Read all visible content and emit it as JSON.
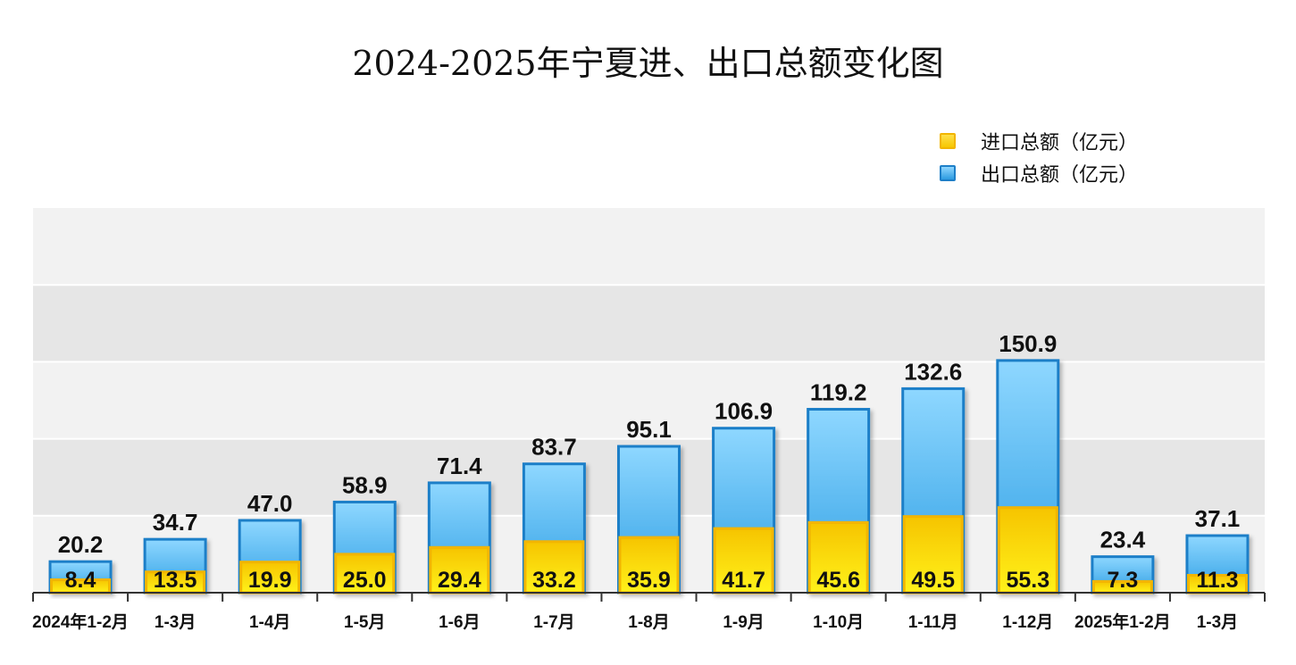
{
  "title": "2024-2025年宁夏进、出口总额变化图",
  "legend": {
    "import_label": "进口总额（亿元）",
    "export_label": "出口总额（亿元）"
  },
  "colors": {
    "import_fill": "#f7d21a",
    "import_border": "#f2b500",
    "export_fill": "#4db6f2",
    "export_border": "#1e7fc8"
  },
  "chart_data": {
    "type": "bar",
    "title": "2024-2025年宁夏进、出口总额变化图",
    "xlabel": "",
    "ylabel": "",
    "ylim": [
      0,
      250
    ],
    "grid": "alternating horizontal bands",
    "legend_position": "top-right",
    "categories": [
      "2024年1-2月",
      "1-3月",
      "1-4月",
      "1-5月",
      "1-6月",
      "1-7月",
      "1-8月",
      "1-9月",
      "1-10月",
      "1-11月",
      "1-12月",
      "2025年1-2月",
      "1-3月"
    ],
    "series": [
      {
        "name": "进口总额（亿元）",
        "values": [
          8.4,
          13.5,
          19.9,
          25.0,
          29.4,
          33.2,
          35.9,
          41.7,
          45.6,
          49.5,
          55.3,
          7.3,
          11.3
        ]
      },
      {
        "name": "出口总额（亿元）",
        "values": [
          20.2,
          34.7,
          47.0,
          58.9,
          71.4,
          83.7,
          95.1,
          106.9,
          119.2,
          132.6,
          150.9,
          23.4,
          37.1
        ]
      }
    ]
  }
}
